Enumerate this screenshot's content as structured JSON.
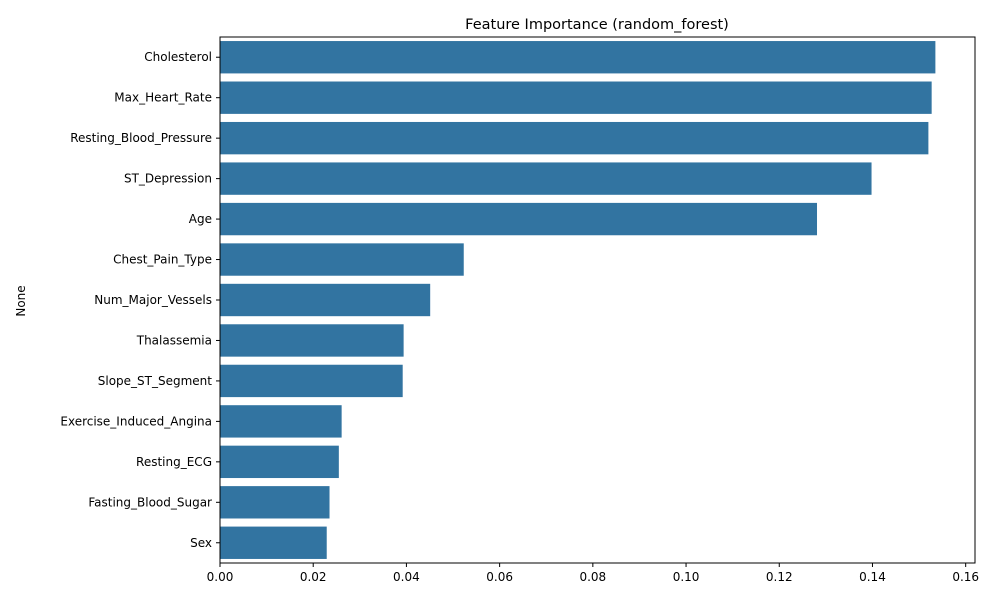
{
  "chart_data": {
    "type": "bar",
    "orientation": "horizontal",
    "title": "Feature Importance (random_forest)",
    "xlabel": "",
    "ylabel": "None",
    "xlim": [
      0,
      0.162
    ],
    "x_ticks": [
      "0.00",
      "0.02",
      "0.04",
      "0.06",
      "0.08",
      "0.10",
      "0.12",
      "0.14",
      "0.16"
    ],
    "grid": false,
    "bar_color": "#3274a1",
    "categories": [
      "Cholesterol",
      "Max_Heart_Rate",
      "Resting_Blood_Pressure",
      "ST_Depression",
      "Age",
      "Chest_Pain_Type",
      "Num_Major_Vessels",
      "Thalassemia",
      "Slope_ST_Segment",
      "Exercise_Induced_Angina",
      "Resting_ECG",
      "Fasting_Blood_Sugar",
      "Sex"
    ],
    "values": [
      0.1535,
      0.1527,
      0.152,
      0.1398,
      0.1281,
      0.0523,
      0.0451,
      0.0394,
      0.0392,
      0.0261,
      0.0255,
      0.0235,
      0.0229
    ]
  }
}
